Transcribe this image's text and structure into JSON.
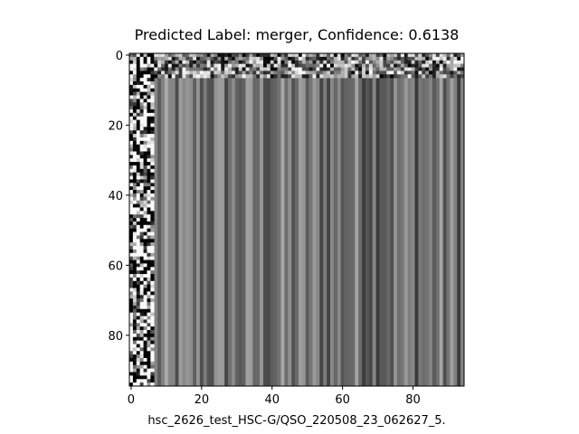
{
  "chart_data": {
    "type": "image",
    "title": "Predicted Label: merger, Confidence: 0.6138",
    "xlabel": "hsc_2626_test_HSC-G/QSO_220508_23_062627_5.",
    "xlim": [
      -0.5,
      94.5
    ],
    "ylim": [
      94.5,
      -0.5
    ],
    "xticks": [
      0,
      20,
      40,
      60,
      80
    ],
    "yticks": [
      0,
      20,
      40,
      60,
      80
    ],
    "colormap": "gray"
  }
}
